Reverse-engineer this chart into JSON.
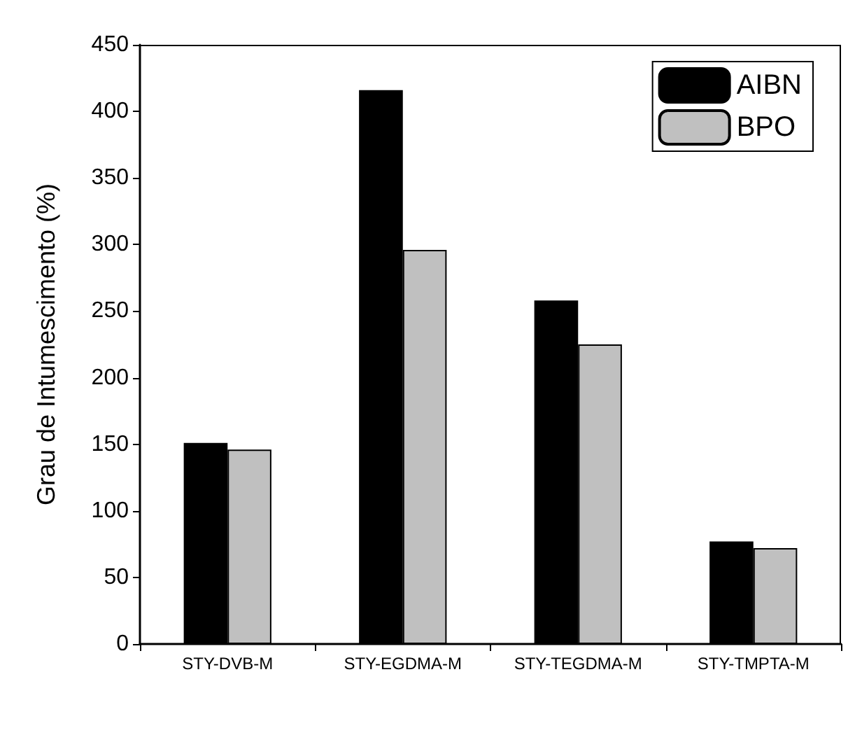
{
  "chart_data": {
    "type": "bar",
    "ylabel": "Grau de Intumescimento (%)",
    "categories": [
      "STY-DVB-M",
      "STY-EGDMA-M",
      "STY-TEGDMA-M",
      "STY-TMPTA-M"
    ],
    "series": [
      {
        "name": "AIBN",
        "color": "#000000",
        "values": [
          151,
          416,
          258,
          77
        ]
      },
      {
        "name": "BPO",
        "color": "#c0c0c0",
        "values": [
          146,
          296,
          225,
          72
        ]
      }
    ],
    "ylim": [
      0,
      450
    ],
    "yticks": [
      0,
      50,
      100,
      150,
      200,
      250,
      300,
      350,
      400,
      450
    ],
    "grid": false,
    "legend": "top right"
  }
}
